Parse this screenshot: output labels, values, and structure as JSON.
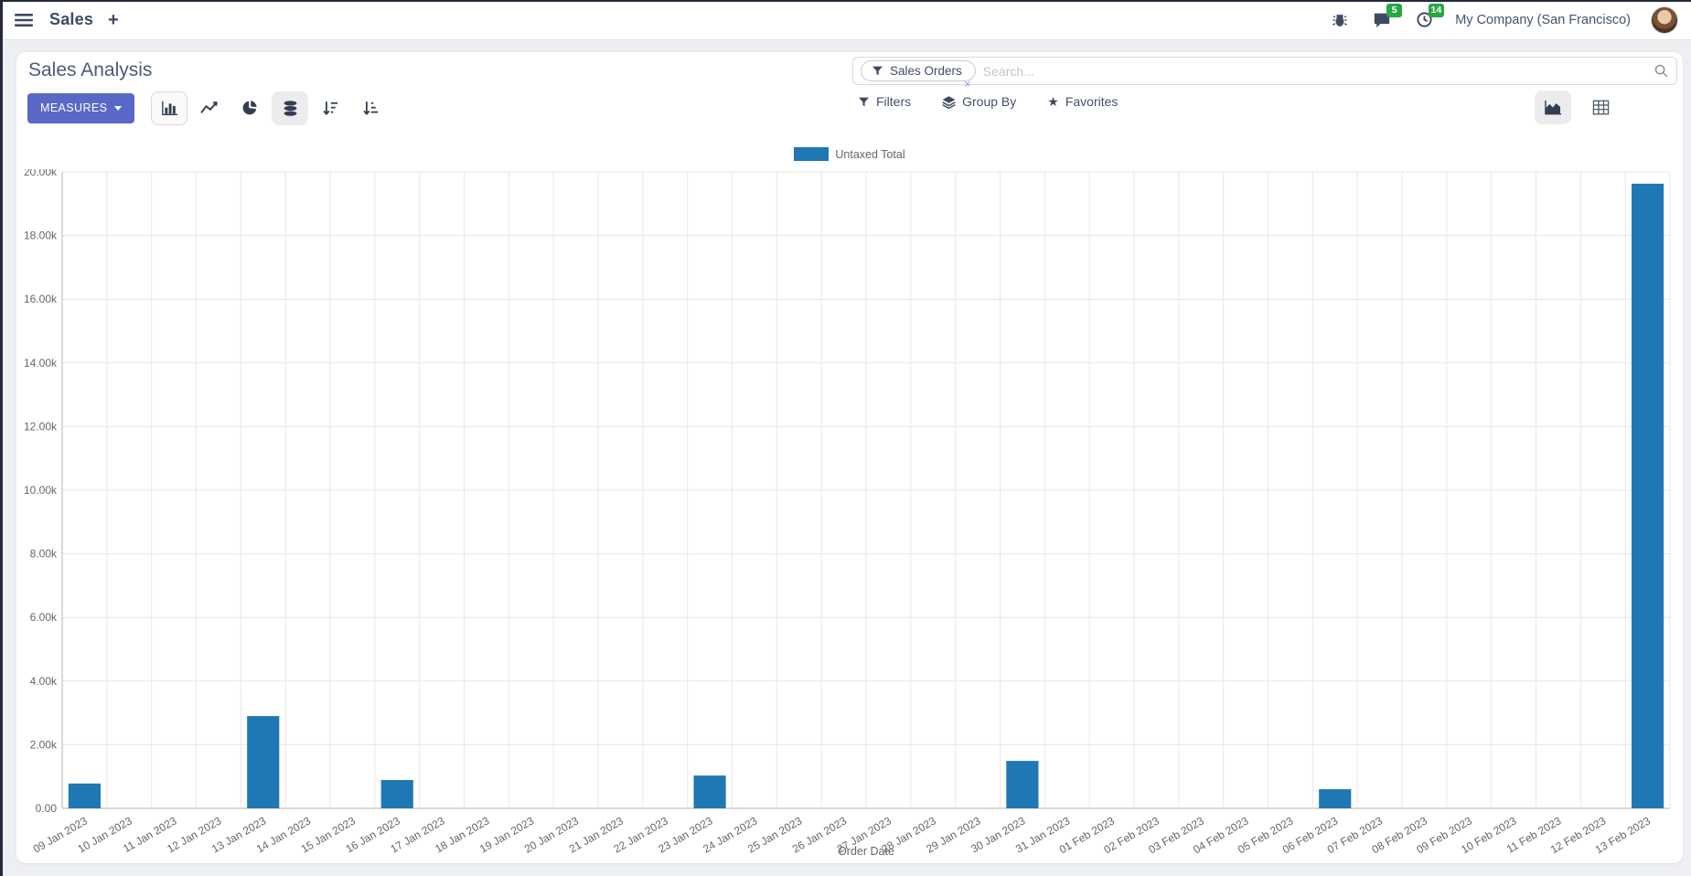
{
  "navbar": {
    "app_name": "Sales",
    "plus": "+",
    "messages_count": "5",
    "activities_count": "14",
    "company": "My Company (San Francisco)"
  },
  "control_panel": {
    "title": "Sales Analysis",
    "measures_label": "MEASURES",
    "search": {
      "facet": "Sales Orders",
      "placeholder": "Search...",
      "remove": "×"
    },
    "buttons": {
      "filters": "Filters",
      "group_by": "Group By",
      "favorites": "Favorites"
    }
  },
  "colors": {
    "accent": "#5a68c8",
    "bar": "#1f77b4",
    "badge": "#28a745",
    "grid": "#e7e7e7",
    "axis": "#b3b3b3",
    "tick_text": "#666666"
  },
  "chart_data": {
    "type": "bar",
    "title": "",
    "xlabel": "Order Date",
    "ylabel": "",
    "legend": [
      "Untaxed Total"
    ],
    "legend_position": "top",
    "grid": true,
    "ylim": [
      0,
      20000
    ],
    "yticks": [
      0,
      2000,
      4000,
      6000,
      8000,
      10000,
      12000,
      14000,
      16000,
      18000,
      20000
    ],
    "ytick_labels": [
      "0.00",
      "2.00k",
      "4.00k",
      "6.00k",
      "8.00k",
      "10.00k",
      "12.00k",
      "14.00k",
      "16.00k",
      "18.00k",
      "20.00k"
    ],
    "categories": [
      "09 Jan 2023",
      "10 Jan 2023",
      "11 Jan 2023",
      "12 Jan 2023",
      "13 Jan 2023",
      "14 Jan 2023",
      "15 Jan 2023",
      "16 Jan 2023",
      "17 Jan 2023",
      "18 Jan 2023",
      "19 Jan 2023",
      "20 Jan 2023",
      "21 Jan 2023",
      "22 Jan 2023",
      "23 Jan 2023",
      "24 Jan 2023",
      "25 Jan 2023",
      "26 Jan 2023",
      "27 Jan 2023",
      "28 Jan 2023",
      "29 Jan 2023",
      "30 Jan 2023",
      "31 Jan 2023",
      "01 Feb 2023",
      "02 Feb 2023",
      "03 Feb 2023",
      "04 Feb 2023",
      "05 Feb 2023",
      "06 Feb 2023",
      "07 Feb 2023",
      "08 Feb 2023",
      "09 Feb 2023",
      "10 Feb 2023",
      "11 Feb 2023",
      "12 Feb 2023",
      "13 Feb 2023"
    ],
    "series": [
      {
        "name": "Untaxed Total",
        "color": "#1f77b4",
        "values": [
          780,
          0,
          0,
          0,
          2900,
          0,
          0,
          890,
          0,
          0,
          0,
          0,
          0,
          0,
          1030,
          0,
          0,
          0,
          0,
          0,
          0,
          1490,
          0,
          0,
          0,
          0,
          0,
          0,
          600,
          0,
          0,
          0,
          0,
          0,
          0,
          19630
        ]
      }
    ]
  }
}
